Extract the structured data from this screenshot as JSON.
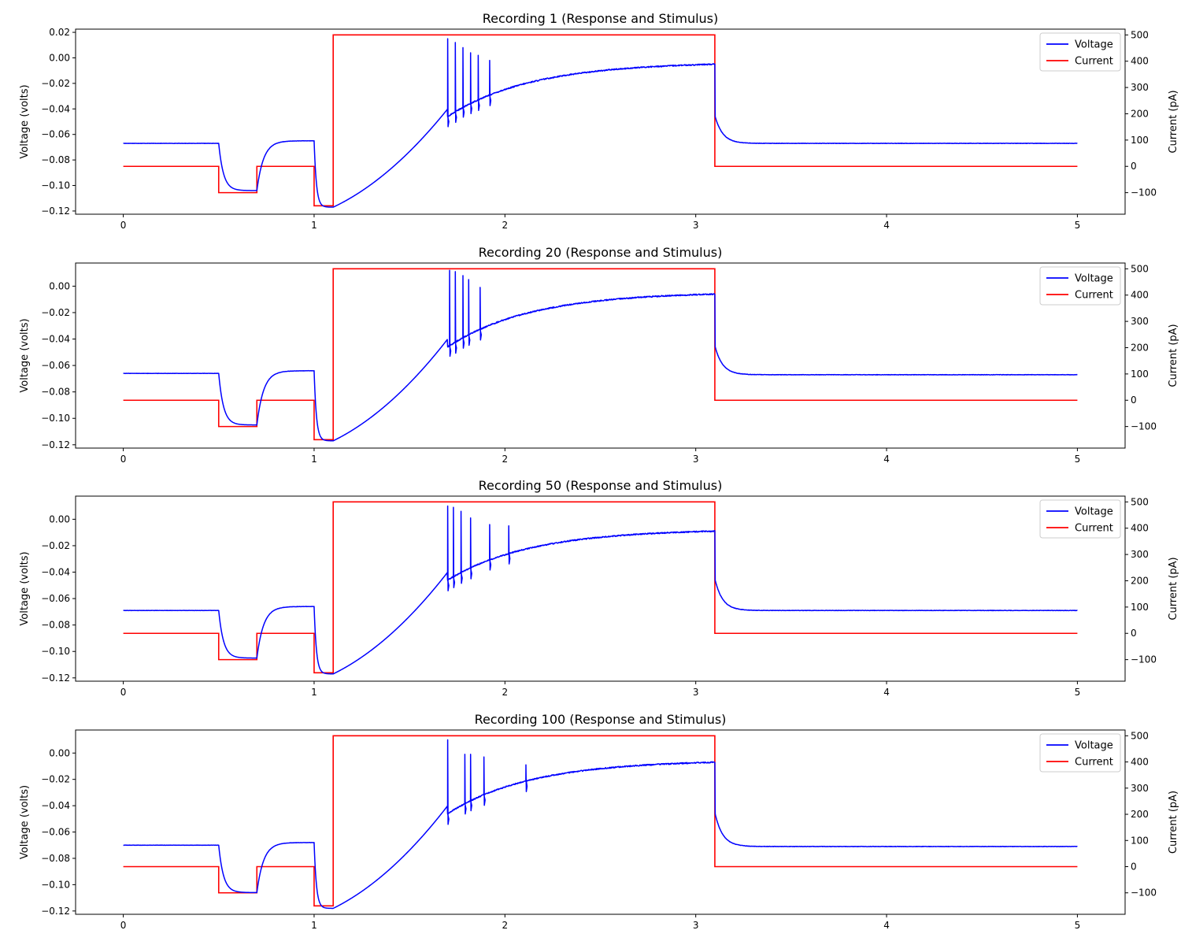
{
  "figure": {
    "background": "#ffffff"
  },
  "colors": {
    "voltage": "#0000ff",
    "current": "#ff0000",
    "axes": "#000000",
    "legend_border": "#cccccc"
  },
  "chart_data": [
    {
      "type": "line",
      "title": "Recording 1 (Response and Stimulus)",
      "xlabel": "",
      "ylabel": "Voltage (volts)",
      "y2label": "Current (pA)",
      "xlim": [
        -0.25,
        5.25
      ],
      "ylim": [
        -0.1225,
        0.0225
      ],
      "y2lim": [
        -182,
        522
      ],
      "xticks": [
        0,
        1,
        2,
        3,
        4,
        5
      ],
      "yticks": [
        -0.12,
        -0.1,
        -0.08,
        -0.06,
        -0.04,
        -0.02,
        0.0,
        0.02
      ],
      "y2ticks": [
        -100,
        0,
        100,
        200,
        300,
        400,
        500
      ],
      "legend": "top-right",
      "voltage": {
        "baseline": -0.067,
        "hyper1": -0.104,
        "rest_mid": -0.065,
        "hyper2": -0.117,
        "ramp_end": -0.005,
        "final_rest": -0.067,
        "spikes": [
          [
            1.7,
            0.015
          ],
          [
            1.74,
            0.012
          ],
          [
            1.78,
            0.008
          ],
          [
            1.82,
            0.004
          ],
          [
            1.86,
            0.002
          ],
          [
            1.92,
            -0.002
          ]
        ]
      },
      "series": [
        {
          "name": "Voltage",
          "axis": "left",
          "color": "#0000ff"
        },
        {
          "name": "Current",
          "axis": "right",
          "color": "#ff0000",
          "x": [
            0,
            0.5,
            0.5,
            0.7,
            0.7,
            1.0,
            1.0,
            1.1,
            1.1,
            3.1,
            3.1,
            5.0
          ],
          "y": [
            0,
            0,
            -100,
            -100,
            0,
            0,
            -150,
            -150,
            500,
            500,
            0,
            0
          ]
        }
      ]
    },
    {
      "type": "line",
      "title": "Recording 20 (Response and Stimulus)",
      "xlabel": "",
      "ylabel": "Voltage (volts)",
      "y2label": "Current (pA)",
      "xlim": [
        -0.25,
        5.25
      ],
      "ylim": [
        -0.1225,
        0.0175
      ],
      "y2lim": [
        -182,
        522
      ],
      "xticks": [
        0,
        1,
        2,
        3,
        4,
        5
      ],
      "yticks": [
        -0.12,
        -0.1,
        -0.08,
        -0.06,
        -0.04,
        -0.02,
        0.0
      ],
      "y2ticks": [
        -100,
        0,
        100,
        200,
        300,
        400,
        500
      ],
      "legend": "top-right",
      "voltage": {
        "baseline": -0.066,
        "hyper1": -0.105,
        "rest_mid": -0.064,
        "hyper2": -0.117,
        "ramp_end": -0.006,
        "final_rest": -0.067,
        "spikes": [
          [
            1.71,
            0.012
          ],
          [
            1.74,
            0.011
          ],
          [
            1.78,
            0.008
          ],
          [
            1.81,
            0.005
          ],
          [
            1.87,
            -0.001
          ]
        ]
      },
      "series": [
        {
          "name": "Voltage",
          "axis": "left",
          "color": "#0000ff"
        },
        {
          "name": "Current",
          "axis": "right",
          "color": "#ff0000",
          "x": [
            0,
            0.5,
            0.5,
            0.7,
            0.7,
            1.0,
            1.0,
            1.1,
            1.1,
            3.1,
            3.1,
            5.0
          ],
          "y": [
            0,
            0,
            -100,
            -100,
            0,
            0,
            -150,
            -150,
            500,
            500,
            0,
            0
          ]
        }
      ]
    },
    {
      "type": "line",
      "title": "Recording 50 (Response and Stimulus)",
      "xlabel": "",
      "ylabel": "Voltage (volts)",
      "y2label": "Current (pA)",
      "xlim": [
        -0.25,
        5.25
      ],
      "ylim": [
        -0.1225,
        0.0175
      ],
      "y2lim": [
        -182,
        522
      ],
      "xticks": [
        0,
        1,
        2,
        3,
        4,
        5
      ],
      "yticks": [
        -0.12,
        -0.1,
        -0.08,
        -0.06,
        -0.04,
        -0.02,
        0.0
      ],
      "y2ticks": [
        -100,
        0,
        100,
        200,
        300,
        400,
        500
      ],
      "legend": "top-right",
      "voltage": {
        "baseline": -0.069,
        "hyper1": -0.105,
        "rest_mid": -0.066,
        "hyper2": -0.117,
        "ramp_end": -0.009,
        "final_rest": -0.069,
        "spikes": [
          [
            1.7,
            0.01
          ],
          [
            1.73,
            0.009
          ],
          [
            1.77,
            0.006
          ],
          [
            1.82,
            0.001
          ],
          [
            1.92,
            -0.004
          ],
          [
            2.02,
            -0.005
          ]
        ]
      },
      "series": [
        {
          "name": "Voltage",
          "axis": "left",
          "color": "#0000ff"
        },
        {
          "name": "Current",
          "axis": "right",
          "color": "#ff0000",
          "x": [
            0,
            0.5,
            0.5,
            0.7,
            0.7,
            1.0,
            1.0,
            1.1,
            1.1,
            3.1,
            3.1,
            5.0
          ],
          "y": [
            0,
            0,
            -100,
            -100,
            0,
            0,
            -150,
            -150,
            500,
            500,
            0,
            0
          ]
        }
      ]
    },
    {
      "type": "line",
      "title": "Recording 100 (Response and Stimulus)",
      "xlabel": "",
      "ylabel": "Voltage (volts)",
      "y2label": "Current (pA)",
      "xlim": [
        -0.25,
        5.25
      ],
      "ylim": [
        -0.1225,
        0.0175
      ],
      "y2lim": [
        -182,
        522
      ],
      "xticks": [
        0,
        1,
        2,
        3,
        4,
        5
      ],
      "yticks": [
        -0.12,
        -0.1,
        -0.08,
        -0.06,
        -0.04,
        -0.02,
        0.0
      ],
      "y2ticks": [
        -100,
        0,
        100,
        200,
        300,
        400,
        500
      ],
      "legend": "top-right",
      "voltage": {
        "baseline": -0.07,
        "hyper1": -0.106,
        "rest_mid": -0.068,
        "hyper2": -0.118,
        "ramp_end": -0.007,
        "final_rest": -0.071,
        "spikes": [
          [
            1.7,
            0.01
          ],
          [
            1.79,
            -0.001
          ],
          [
            1.82,
            -0.001
          ],
          [
            1.89,
            -0.003
          ],
          [
            2.11,
            -0.009
          ]
        ]
      },
      "series": [
        {
          "name": "Voltage",
          "axis": "left",
          "color": "#0000ff"
        },
        {
          "name": "Current",
          "axis": "right",
          "color": "#ff0000",
          "x": [
            0,
            0.5,
            0.5,
            0.7,
            0.7,
            1.0,
            1.0,
            1.1,
            1.1,
            3.1,
            3.1,
            5.0
          ],
          "y": [
            0,
            0,
            -100,
            -100,
            0,
            0,
            -150,
            -150,
            500,
            500,
            0,
            0
          ]
        }
      ]
    }
  ]
}
